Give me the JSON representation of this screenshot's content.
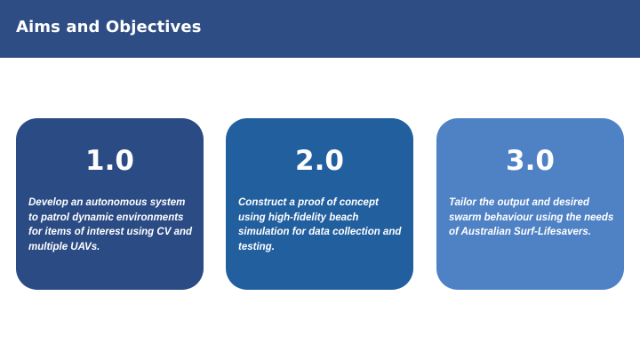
{
  "header": {
    "title": "Aims and Objectives",
    "background_color": "#2e4d85"
  },
  "cards": [
    {
      "number": "1.0",
      "text": "Develop an autonomous system to patrol dynamic environments for items of interest using CV and multiple UAVs.",
      "color": "#2b4b84"
    },
    {
      "number": "2.0",
      "text": "Construct a proof of concept using high-fidelity beach simulation for data collection and testing.",
      "color": "#215f9e"
    },
    {
      "number": "3.0",
      "text": "Tailor the output and desired swarm behaviour using the needs of Australian Surf-Lifesavers.",
      "color": "#4f82c4"
    }
  ]
}
